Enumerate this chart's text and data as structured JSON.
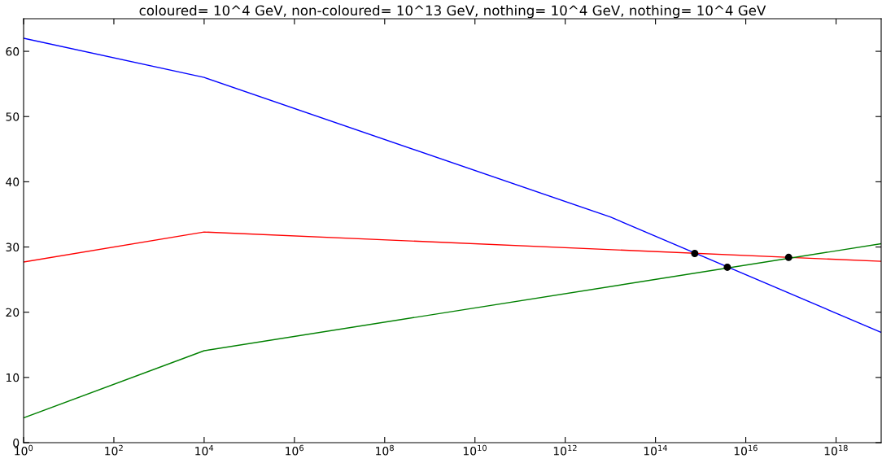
{
  "chart_data": {
    "type": "line",
    "title": "coloured= 10^4 GeV, non-coloured= 10^13 GeV, nothing= 10^4 GeV, nothing= 10^4 GeV",
    "log": "x",
    "grid": false,
    "xlim": [
      1,
      1e+19
    ],
    "ylim": [
      0,
      65
    ],
    "xticks": [
      {
        "value": 1,
        "label": "10$^{0}$"
      },
      {
        "value": 100,
        "label": "10$^{2}$"
      },
      {
        "value": 10000,
        "label": "10$^{4}$"
      },
      {
        "value": 1000000,
        "label": "10$^{6}$"
      },
      {
        "value": 100000000,
        "label": "10$^{8}$"
      },
      {
        "value": 10000000000.0,
        "label": "10$^{10}$"
      },
      {
        "value": 1000000000000.0,
        "label": "10$^{12}$"
      },
      {
        "value": 100000000000000.0,
        "label": "10$^{14}$"
      },
      {
        "value": 1e+16,
        "label": "10$^{16}$"
      },
      {
        "value": 1e+18,
        "label": "10$^{18}$"
      }
    ],
    "yticks": [
      0,
      10,
      20,
      30,
      40,
      50,
      60
    ],
    "series": [
      {
        "color": "#0000ff",
        "x": [
          1,
          10000,
          10000000000000.0,
          1e+19
        ],
        "values": [
          62.0,
          56.0,
          34.6,
          16.9
        ]
      },
      {
        "color": "#ff0000",
        "x": [
          1,
          10000,
          1e+19
        ],
        "values": [
          27.7,
          32.3,
          27.8
        ]
      },
      {
        "color": "#008000",
        "x": [
          1,
          10000,
          1e+19
        ],
        "values": [
          3.8,
          14.1,
          30.5
        ]
      },
      {
        "type": "scatter",
        "color": "#000000",
        "marker": "circle",
        "x": [
          740000000000000.0,
          3900000000000000.0,
          8.9e+16
        ],
        "values": [
          29.0,
          26.9,
          28.4
        ]
      }
    ]
  }
}
